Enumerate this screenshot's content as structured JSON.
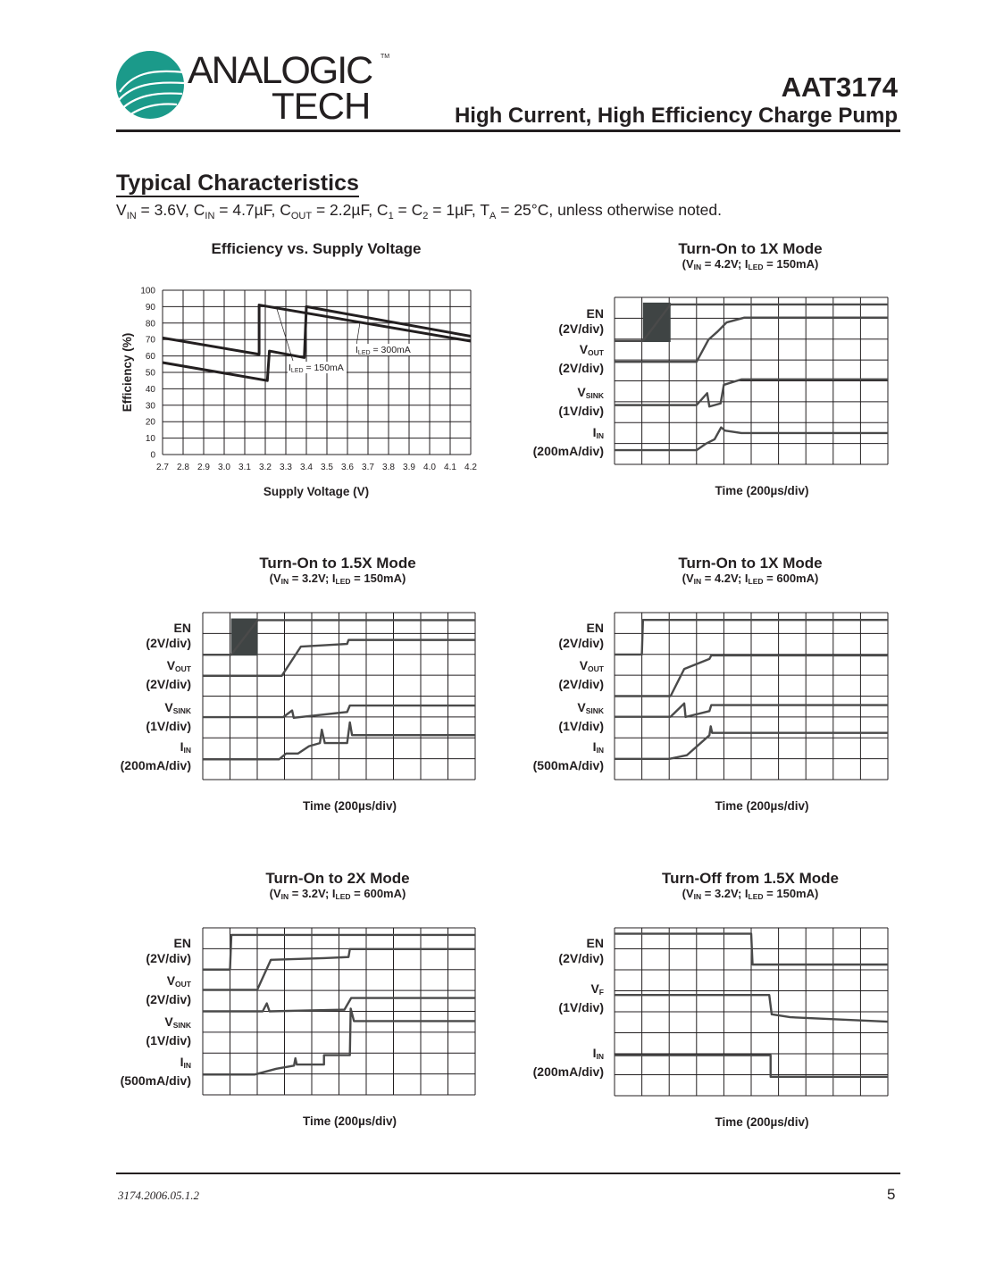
{
  "header": {
    "logo_text_top": "ANALOGIC",
    "logo_text_bottom": "TECH",
    "logo_tm": "TM",
    "part_number": "AAT3174",
    "subtitle": "High Current, High Efficiency Charge Pump"
  },
  "section": {
    "title": "Typical Characteristics",
    "conditions": [
      {
        "t": "V"
      },
      {
        "s": "IN"
      },
      {
        "t": " = 3.6V, C"
      },
      {
        "s": "IN"
      },
      {
        "t": " = 4.7µF, C"
      },
      {
        "s": "OUT"
      },
      {
        "t": " = 2.2µF, C"
      },
      {
        "s": "1"
      },
      {
        "t": " = C"
      },
      {
        "s": "2"
      },
      {
        "t": " = 1µF, T"
      },
      {
        "s": "A"
      },
      {
        "t": " = 25°C, unless otherwise noted."
      }
    ]
  },
  "colors": {
    "logo_teal": "#1b9a8a",
    "trace": "#4a4a4a",
    "grid": "#231f20",
    "text": "#231f20"
  },
  "chart_data": [
    {
      "type": "line",
      "title": "Efficiency vs. Supply Voltage",
      "xlabel": "Supply Voltage (V)",
      "ylabel": "Efficiency (%)",
      "xlim": [
        2.7,
        4.2
      ],
      "ylim": [
        0,
        100
      ],
      "xticks": [
        "2.7",
        "2.8",
        "2.9",
        "3.0",
        "3.1",
        "3.2",
        "3.3",
        "3.4",
        "3.5",
        "3.6",
        "3.7",
        "3.8",
        "3.9",
        "4.0",
        "4.1",
        "4.2"
      ],
      "yticks": [
        "0",
        "10",
        "20",
        "30",
        "40",
        "50",
        "60",
        "70",
        "80",
        "90",
        "100"
      ],
      "grid": true,
      "series": [
        {
          "name": "150mA",
          "points": [
            [
              2.7,
              71
            ],
            [
              3.17,
              61
            ],
            [
              3.17,
              91
            ],
            [
              4.2,
              69
            ]
          ]
        },
        {
          "name": "300mA",
          "points": [
            [
              2.7,
              56
            ],
            [
              3.21,
              45
            ],
            [
              3.22,
              63
            ],
            [
              3.39,
              59
            ],
            [
              3.4,
              90
            ],
            [
              4.2,
              72
            ]
          ]
        }
      ],
      "annotations": [
        {
          "pre": "I",
          "sub": "LED",
          "post": " = 300mA"
        },
        {
          "pre": "I",
          "sub": "LED",
          "post": " = 150mA"
        }
      ]
    },
    {
      "type": "line",
      "subtype": "oscilloscope",
      "title": "Turn-On to 1X Mode",
      "subtitle": [
        {
          "t": "(V"
        },
        {
          "s": "IN"
        },
        {
          "t": " = 4.2V; I"
        },
        {
          "s": "LED"
        },
        {
          "t": " = 150mA)"
        }
      ],
      "xlabel": "Time (200µs/div)",
      "divisions": [
        10,
        8
      ],
      "channels": [
        {
          "name": "EN",
          "sub": "",
          "scale": "(2V/div)",
          "burst": [
            1.04,
            2.05,
            5.86,
            7.75
          ],
          "points": [
            [
              0,
              5.91
            ],
            [
              1.04,
              5.91
            ],
            [
              2.05,
              7.66
            ],
            [
              10,
              7.66
            ]
          ]
        },
        {
          "name": "V",
          "sub": "OUT",
          "scale": "(2V/div)",
          "points": [
            [
              0,
              4.91
            ],
            [
              3.0,
              4.91
            ],
            [
              3.44,
              5.98
            ],
            [
              3.77,
              6.36
            ],
            [
              4.1,
              6.8
            ],
            [
              4.75,
              7.03
            ],
            [
              10,
              7.03
            ]
          ]
        },
        {
          "name": "V",
          "sub": "SINK",
          "scale": "(1V/div)",
          "points": [
            [
              0,
              2.84
            ],
            [
              3.0,
              2.84
            ],
            [
              3.39,
              3.41
            ],
            [
              3.47,
              2.77
            ],
            [
              3.88,
              2.92
            ],
            [
              4.0,
              3.81
            ],
            [
              4.64,
              4.07
            ],
            [
              10,
              4.07
            ]
          ]
        },
        {
          "name": "I",
          "sub": "IN",
          "scale": "(200mA/div)",
          "points": [
            [
              0,
              0.68
            ],
            [
              3.0,
              0.68
            ],
            [
              3.33,
              0.98
            ],
            [
              3.66,
              1.2
            ],
            [
              3.9,
              1.77
            ],
            [
              4.04,
              1.62
            ],
            [
              4.64,
              1.5
            ],
            [
              10,
              1.5
            ]
          ]
        }
      ]
    },
    {
      "type": "line",
      "subtype": "oscilloscope",
      "title": "Turn-On to 1.5X Mode",
      "subtitle": [
        {
          "t": "(V"
        },
        {
          "s": "IN"
        },
        {
          "t": " = 3.2V; I"
        },
        {
          "s": "LED"
        },
        {
          "t": " = 150mA)"
        }
      ],
      "xlabel": "Time (200µs/div)",
      "divisions": [
        10,
        8
      ],
      "channels": [
        {
          "name": "EN",
          "sub": "",
          "scale": "(2V/div)",
          "burst": [
            1.04,
            2.02,
            5.94,
            7.72
          ],
          "points": [
            [
              0,
              5.98
            ],
            [
              1.04,
              5.98
            ],
            [
              2.02,
              7.64
            ],
            [
              10,
              7.64
            ]
          ]
        },
        {
          "name": "V",
          "sub": "OUT",
          "scale": "(2V/div)",
          "points": [
            [
              0,
              4.97
            ],
            [
              2.9,
              4.97
            ],
            [
              3.6,
              6.37
            ],
            [
              5.3,
              6.5
            ],
            [
              5.35,
              6.69
            ],
            [
              10,
              6.69
            ]
          ]
        },
        {
          "name": "V",
          "sub": "SINK",
          "scale": "(1V/div)",
          "points": [
            [
              0,
              2.99
            ],
            [
              2.95,
              2.99
            ],
            [
              3.28,
              3.31
            ],
            [
              3.34,
              2.96
            ],
            [
              5.3,
              3.24
            ],
            [
              5.4,
              3.55
            ],
            [
              10,
              3.55
            ]
          ]
        },
        {
          "name": "I",
          "sub": "IN",
          "scale": "(200mA/div)",
          "points": [
            [
              0,
              0.97
            ],
            [
              2.8,
              0.97
            ],
            [
              3.06,
              1.25
            ],
            [
              3.5,
              1.25
            ],
            [
              3.9,
              1.6
            ],
            [
              4.3,
              1.75
            ],
            [
              4.37,
              2.39
            ],
            [
              4.48,
              1.75
            ],
            [
              5.3,
              1.75
            ],
            [
              5.4,
              2.74
            ],
            [
              5.48,
              2.13
            ],
            [
              10,
              2.13
            ]
          ]
        }
      ]
    },
    {
      "type": "line",
      "subtype": "oscilloscope",
      "title": "Turn-On to 1X Mode",
      "subtitle": [
        {
          "t": "(V"
        },
        {
          "s": "IN"
        },
        {
          "t": " = 4.2V; I"
        },
        {
          "s": "LED"
        },
        {
          "t": " = 600mA)"
        }
      ],
      "xlabel": "Time (200µs/div)",
      "divisions": [
        10,
        8
      ],
      "channels": [
        {
          "name": "EN",
          "sub": "",
          "scale": "(2V/div)",
          "points": [
            [
              0,
              5.99
            ],
            [
              1.0,
              5.99
            ],
            [
              1.04,
              7.65
            ],
            [
              10,
              7.65
            ]
          ]
        },
        {
          "name": "V",
          "sub": "OUT",
          "scale": "(2V/div)",
          "points": [
            [
              0,
              4.0
            ],
            [
              2.05,
              4.0
            ],
            [
              2.55,
              5.3
            ],
            [
              3.47,
              5.78
            ],
            [
              3.54,
              5.95
            ],
            [
              10,
              5.95
            ]
          ]
        },
        {
          "name": "V",
          "sub": "SINK",
          "scale": "(1V/div)",
          "points": [
            [
              0,
              3.01
            ],
            [
              2.05,
              3.01
            ],
            [
              2.55,
              3.65
            ],
            [
              2.6,
              3.0
            ],
            [
              3.47,
              3.28
            ],
            [
              3.54,
              3.57
            ],
            [
              10,
              3.57
            ]
          ]
        },
        {
          "name": "I",
          "sub": "IN",
          "scale": "(500mA/div)",
          "points": [
            [
              0,
              0.99
            ],
            [
              2.0,
              0.99
            ],
            [
              2.65,
              1.17
            ],
            [
              3.47,
              2.12
            ],
            [
              3.52,
              2.55
            ],
            [
              3.57,
              2.24
            ],
            [
              10,
              2.24
            ]
          ]
        }
      ]
    },
    {
      "type": "line",
      "subtype": "oscilloscope",
      "title": "Turn-On to 2X Mode",
      "subtitle": [
        {
          "t": "(V"
        },
        {
          "s": "IN"
        },
        {
          "t": " = 3.2V; I"
        },
        {
          "s": "LED"
        },
        {
          "t": " = 600mA)"
        }
      ],
      "xlabel": "Time (200µs/div)",
      "divisions": [
        10,
        8
      ],
      "channels": [
        {
          "name": "EN",
          "sub": "",
          "scale": "(2V/div)",
          "points": [
            [
              0,
              6.0
            ],
            [
              1.0,
              6.0
            ],
            [
              1.05,
              7.66
            ],
            [
              10,
              7.66
            ]
          ]
        },
        {
          "name": "V",
          "sub": "OUT",
          "scale": "(2V/div)",
          "points": [
            [
              0,
              5.03
            ],
            [
              2.0,
              5.03
            ],
            [
              2.5,
              6.47
            ],
            [
              4.45,
              6.55
            ],
            [
              5.35,
              6.6
            ],
            [
              5.4,
              6.98
            ],
            [
              10,
              6.98
            ]
          ]
        },
        {
          "name": "V",
          "sub": "SINK",
          "scale": "(1V/div)",
          "points": [
            [
              0,
              4.0
            ],
            [
              2.2,
              4.0
            ],
            [
              2.35,
              4.38
            ],
            [
              2.45,
              4.0
            ],
            [
              5.2,
              4.08
            ],
            [
              5.45,
              4.64
            ],
            [
              10,
              4.64
            ]
          ]
        },
        {
          "name": "I",
          "sub": "IN",
          "scale": "(500mA/div)",
          "points": [
            [
              0,
              0.97
            ],
            [
              1.9,
              0.97
            ],
            [
              2.7,
              1.25
            ],
            [
              3.35,
              1.4
            ],
            [
              3.4,
              1.75
            ],
            [
              3.45,
              1.45
            ],
            [
              4.45,
              1.45
            ],
            [
              4.45,
              1.9
            ],
            [
              5.4,
              1.9
            ],
            [
              5.43,
              4.13
            ],
            [
              5.55,
              3.53
            ],
            [
              10,
              3.53
            ]
          ]
        }
      ]
    },
    {
      "type": "line",
      "subtype": "oscilloscope",
      "title": "Turn-Off from 1.5X Mode",
      "subtitle": [
        {
          "t": "(V"
        },
        {
          "s": "IN"
        },
        {
          "t": " = 3.2V; I"
        },
        {
          "s": "LED"
        },
        {
          "t": " = 150mA)"
        }
      ],
      "xlabel": "Time (200µs/div)",
      "divisions": [
        10,
        8
      ],
      "channels": [
        {
          "name": "EN",
          "sub": "",
          "scale": "(2V/div)",
          "points": [
            [
              0,
              7.72
            ],
            [
              5.0,
              7.72
            ],
            [
              5.05,
              6.25
            ],
            [
              10,
              6.25
            ]
          ]
        },
        {
          "name": "V",
          "sub": "F",
          "scale": "(1V/div)",
          "points": [
            [
              0,
              4.8
            ],
            [
              5.66,
              4.8
            ],
            [
              5.75,
              3.88
            ],
            [
              6.43,
              3.74
            ],
            [
              10,
              3.53
            ]
          ]
        },
        {
          "name": "I",
          "sub": "IN",
          "scale": "(200mA/div)",
          "points": [
            [
              0,
              1.93
            ],
            [
              5.71,
              1.93
            ],
            [
              5.71,
              0.9
            ],
            [
              10,
              0.9
            ]
          ]
        }
      ]
    }
  ],
  "footer": {
    "doc_code": "3174.2006.05.1.2",
    "page": "5"
  }
}
